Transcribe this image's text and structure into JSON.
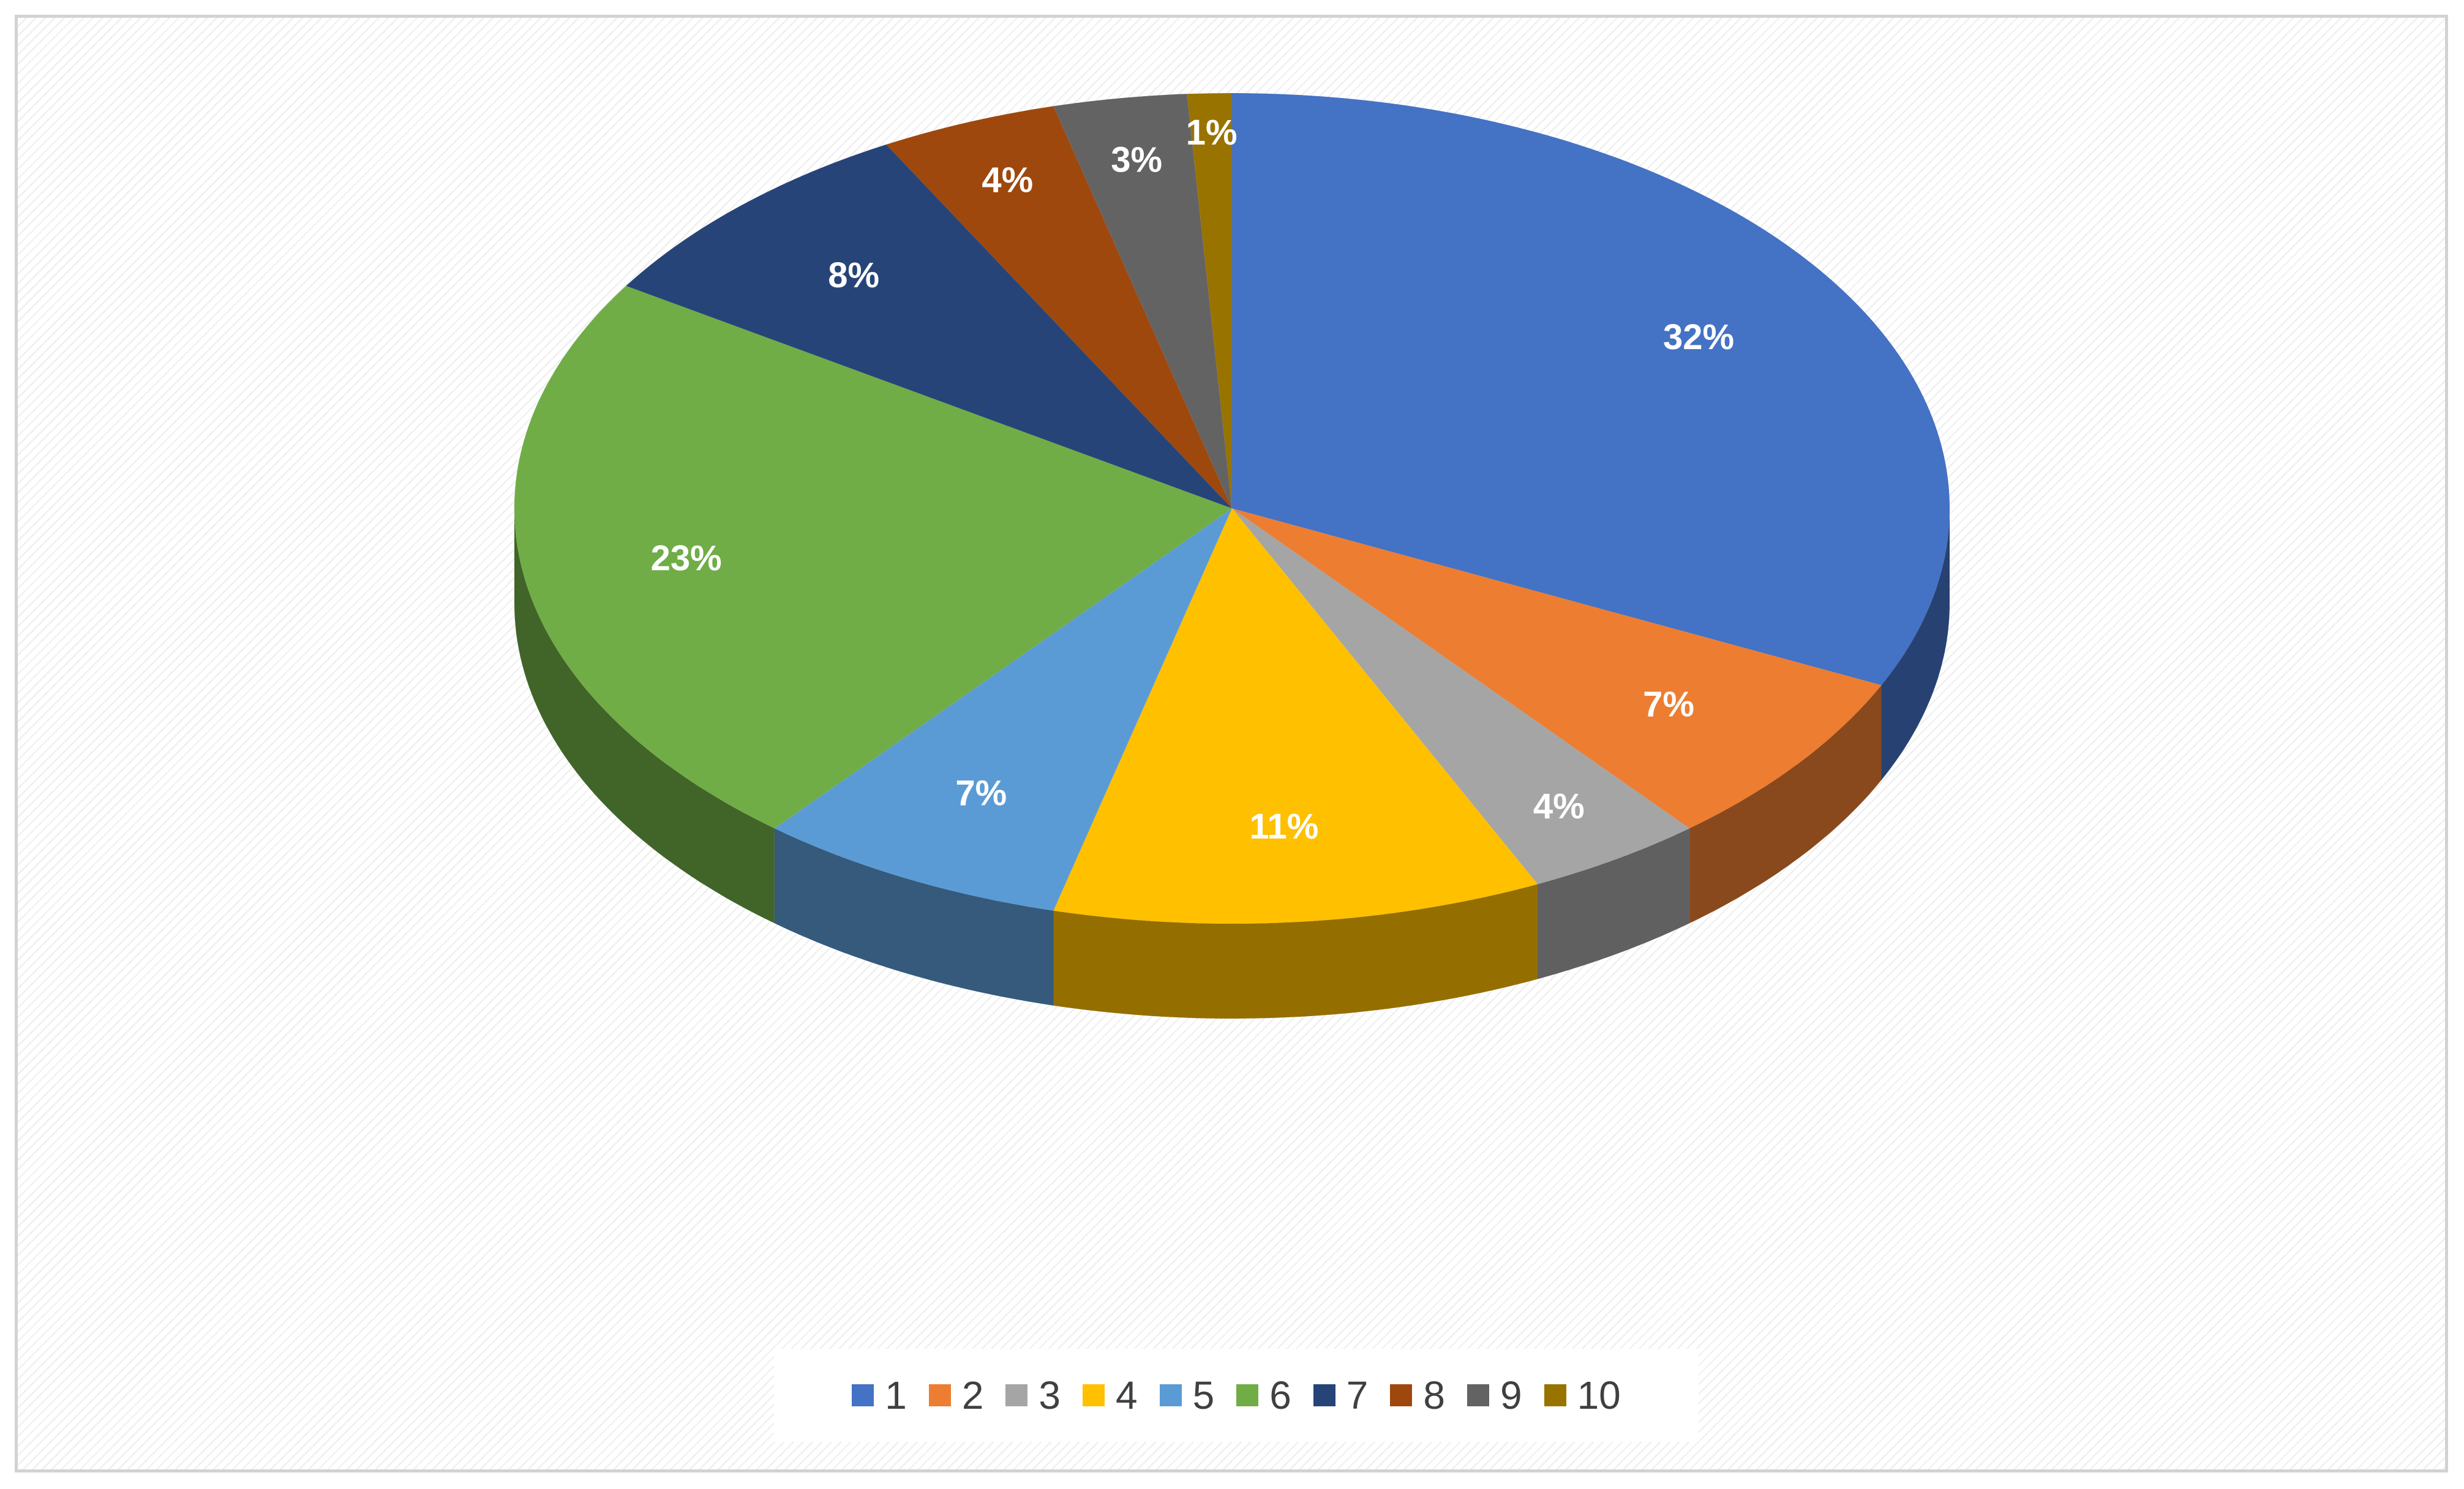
{
  "chart_data": {
    "type": "pie",
    "style": "3d",
    "categories": [
      "1",
      "2",
      "3",
      "4",
      "5",
      "6",
      "7",
      "8",
      "9",
      "10"
    ],
    "values": [
      32,
      7,
      4,
      11,
      7,
      23,
      8,
      4,
      3,
      1
    ],
    "data_labels": [
      "32%",
      "7%",
      "4%",
      "11%",
      "7%",
      "23%",
      "8%",
      "4%",
      "3%",
      "1%"
    ],
    "colors": [
      "#4472c4",
      "#ed7d31",
      "#a5a5a5",
      "#ffc000",
      "#5b9bd5",
      "#70ad47",
      "#264478",
      "#9e480e",
      "#636363",
      "#997300"
    ],
    "legend_position": "bottom",
    "title": ""
  }
}
